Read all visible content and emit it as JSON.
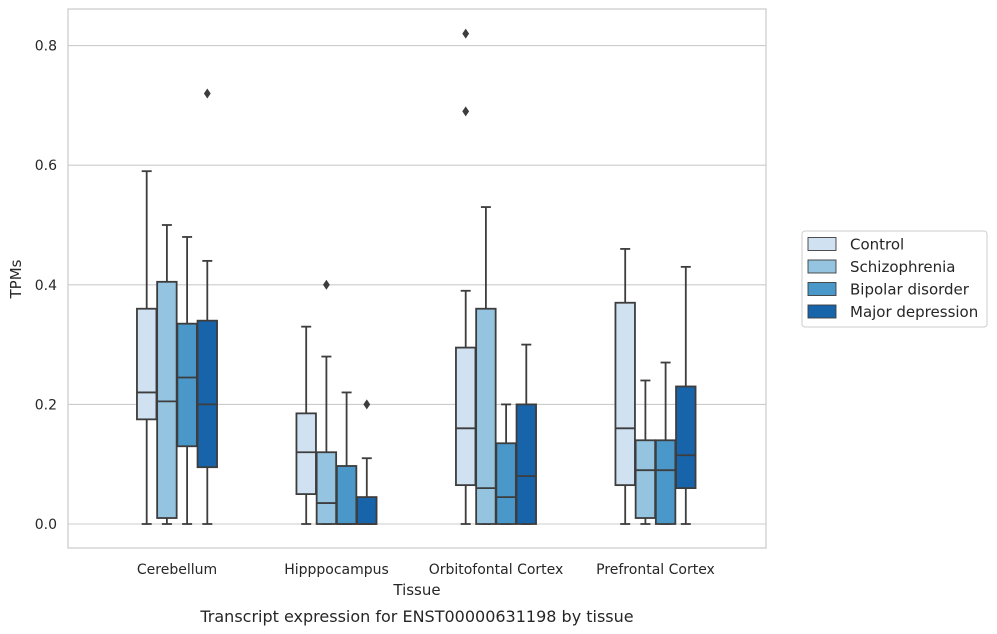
{
  "chart_data": {
    "type": "box",
    "caption": "Transcript expression for ENST00000631198 by tissue",
    "xlabel": "Tissue",
    "ylabel": "TPMs",
    "ylim": [
      -0.04,
      0.86
    ],
    "yticks": [
      0.0,
      0.2,
      0.4,
      0.6,
      0.8
    ],
    "ytick_labels": [
      "0.0",
      "0.2",
      "0.4",
      "0.6",
      "0.8"
    ],
    "grid": "horizontal",
    "legend_position": "right",
    "categories": [
      "Cerebellum",
      "Hipppocampus",
      "Orbitofontal Cortex",
      "Prefrontal Cortex"
    ],
    "series": [
      {
        "name": "Control",
        "color": "#d0e1f2",
        "boxes": [
          {
            "min": 0.0,
            "q1": 0.175,
            "median": 0.22,
            "q3": 0.36,
            "max": 0.59,
            "outliers": []
          },
          {
            "min": 0.0,
            "q1": 0.05,
            "median": 0.12,
            "q3": 0.185,
            "max": 0.33,
            "outliers": []
          },
          {
            "min": 0.0,
            "q1": 0.065,
            "median": 0.16,
            "q3": 0.295,
            "max": 0.39,
            "outliers": [
              0.69,
              0.82
            ]
          },
          {
            "min": 0.0,
            "q1": 0.065,
            "median": 0.16,
            "q3": 0.37,
            "max": 0.46,
            "outliers": []
          }
        ]
      },
      {
        "name": "Schizophrenia",
        "color": "#94c4df",
        "boxes": [
          {
            "min": 0.0,
            "q1": 0.01,
            "median": 0.205,
            "q3": 0.405,
            "max": 0.5,
            "outliers": []
          },
          {
            "min": 0.0,
            "q1": 0.0,
            "median": 0.035,
            "q3": 0.12,
            "max": 0.28,
            "outliers": [
              0.4
            ]
          },
          {
            "min": 0.0,
            "q1": 0.0,
            "median": 0.06,
            "q3": 0.36,
            "max": 0.53,
            "outliers": []
          },
          {
            "min": 0.0,
            "q1": 0.01,
            "median": 0.09,
            "q3": 0.14,
            "max": 0.24,
            "outliers": []
          }
        ]
      },
      {
        "name": "Bipolar disorder",
        "color": "#4a98c9",
        "boxes": [
          {
            "min": 0.0,
            "q1": 0.13,
            "median": 0.245,
            "q3": 0.335,
            "max": 0.48,
            "outliers": []
          },
          {
            "min": 0.0,
            "q1": 0.0,
            "median": 0.0,
            "q3": 0.097,
            "max": 0.22,
            "outliers": []
          },
          {
            "min": 0.0,
            "q1": 0.0,
            "median": 0.045,
            "q3": 0.135,
            "max": 0.2,
            "outliers": []
          },
          {
            "min": 0.0,
            "q1": 0.0,
            "median": 0.09,
            "q3": 0.14,
            "max": 0.27,
            "outliers": []
          }
        ]
      },
      {
        "name": "Major depression",
        "color": "#1764ab",
        "boxes": [
          {
            "min": 0.0,
            "q1": 0.095,
            "median": 0.2,
            "q3": 0.34,
            "max": 0.44,
            "outliers": [
              0.72
            ]
          },
          {
            "min": 0.0,
            "q1": 0.0,
            "median": 0.0,
            "q3": 0.045,
            "max": 0.11,
            "outliers": [
              0.2
            ]
          },
          {
            "min": 0.0,
            "q1": 0.0,
            "median": 0.08,
            "q3": 0.2,
            "max": 0.3,
            "outliers": []
          },
          {
            "min": 0.0,
            "q1": 0.06,
            "median": 0.115,
            "q3": 0.23,
            "max": 0.43,
            "outliers": []
          }
        ]
      }
    ]
  }
}
